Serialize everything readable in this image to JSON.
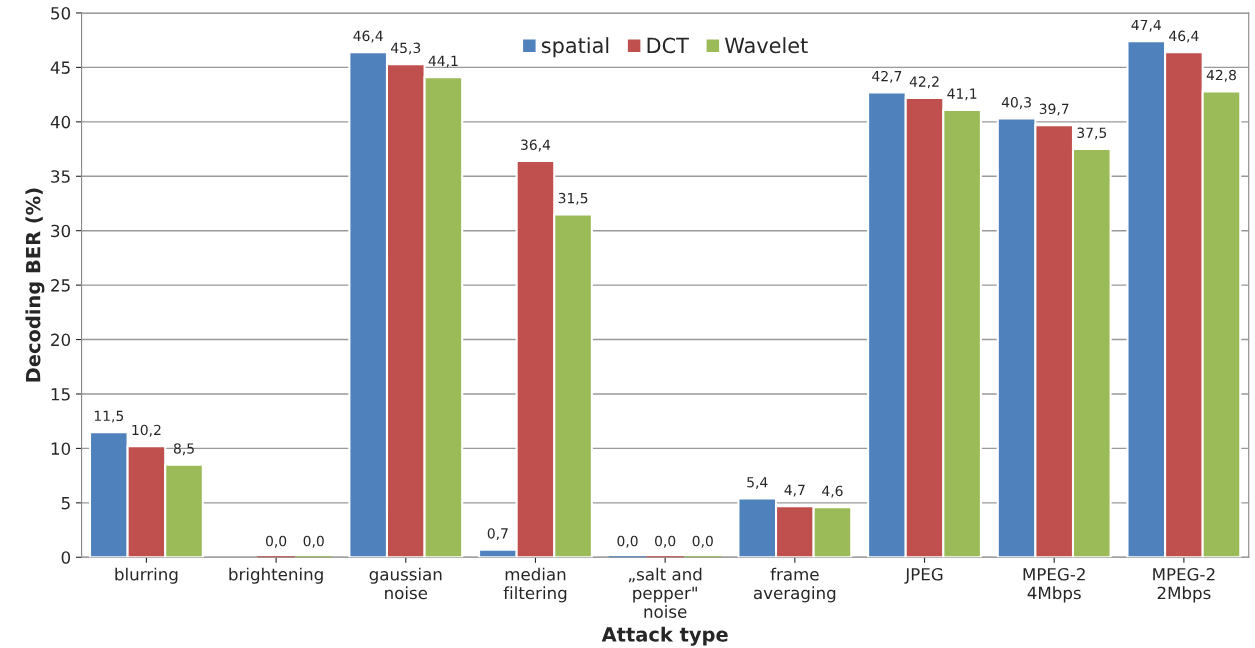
{
  "chart_data": {
    "type": "bar",
    "xlabel": "Attack type",
    "ylabel": "Decoding BER (%)",
    "categories": [
      "blurring",
      "brightening",
      "gaussian\nnoise",
      "median\nfiltering",
      "„salt and\npepper\"\nnoise",
      "frame\naveraging",
      "JPEG",
      "MPEG-2\n4Mbps",
      "MPEG-2\n2Mbps"
    ],
    "series": [
      {
        "name": "spatial",
        "color": "#4f81bd",
        "values": [
          11.5,
          null,
          46.4,
          0.7,
          0.0,
          5.4,
          42.7,
          40.3,
          47.4
        ],
        "value_labels": [
          "11,5",
          null,
          "46,4",
          "0,7",
          "0,0",
          "5,4",
          "42,7",
          "40,3",
          "47,4"
        ]
      },
      {
        "name": "DCT",
        "color": "#c0504d",
        "values": [
          10.2,
          0.0,
          45.3,
          36.4,
          0.0,
          4.7,
          42.2,
          39.7,
          46.4
        ],
        "value_labels": [
          "10,2",
          "0,0",
          "45,3",
          "36,4",
          "0,0",
          "4,7",
          "42,2",
          "39,7",
          "46,4"
        ]
      },
      {
        "name": "Wavelet",
        "color": "#9bbb59",
        "values": [
          8.5,
          0.0,
          44.1,
          31.5,
          0.0,
          4.6,
          41.1,
          37.5,
          42.8
        ],
        "value_labels": [
          "8,5",
          "0,0",
          "44,1",
          "31,5",
          "0,0",
          "4,6",
          "41,1",
          "37,5",
          "42,8"
        ]
      }
    ],
    "ylim": [
      0,
      50
    ],
    "yticks": [
      0,
      5,
      10,
      15,
      20,
      25,
      30,
      35,
      40,
      45,
      50
    ],
    "grid": "y",
    "legend": "top"
  }
}
